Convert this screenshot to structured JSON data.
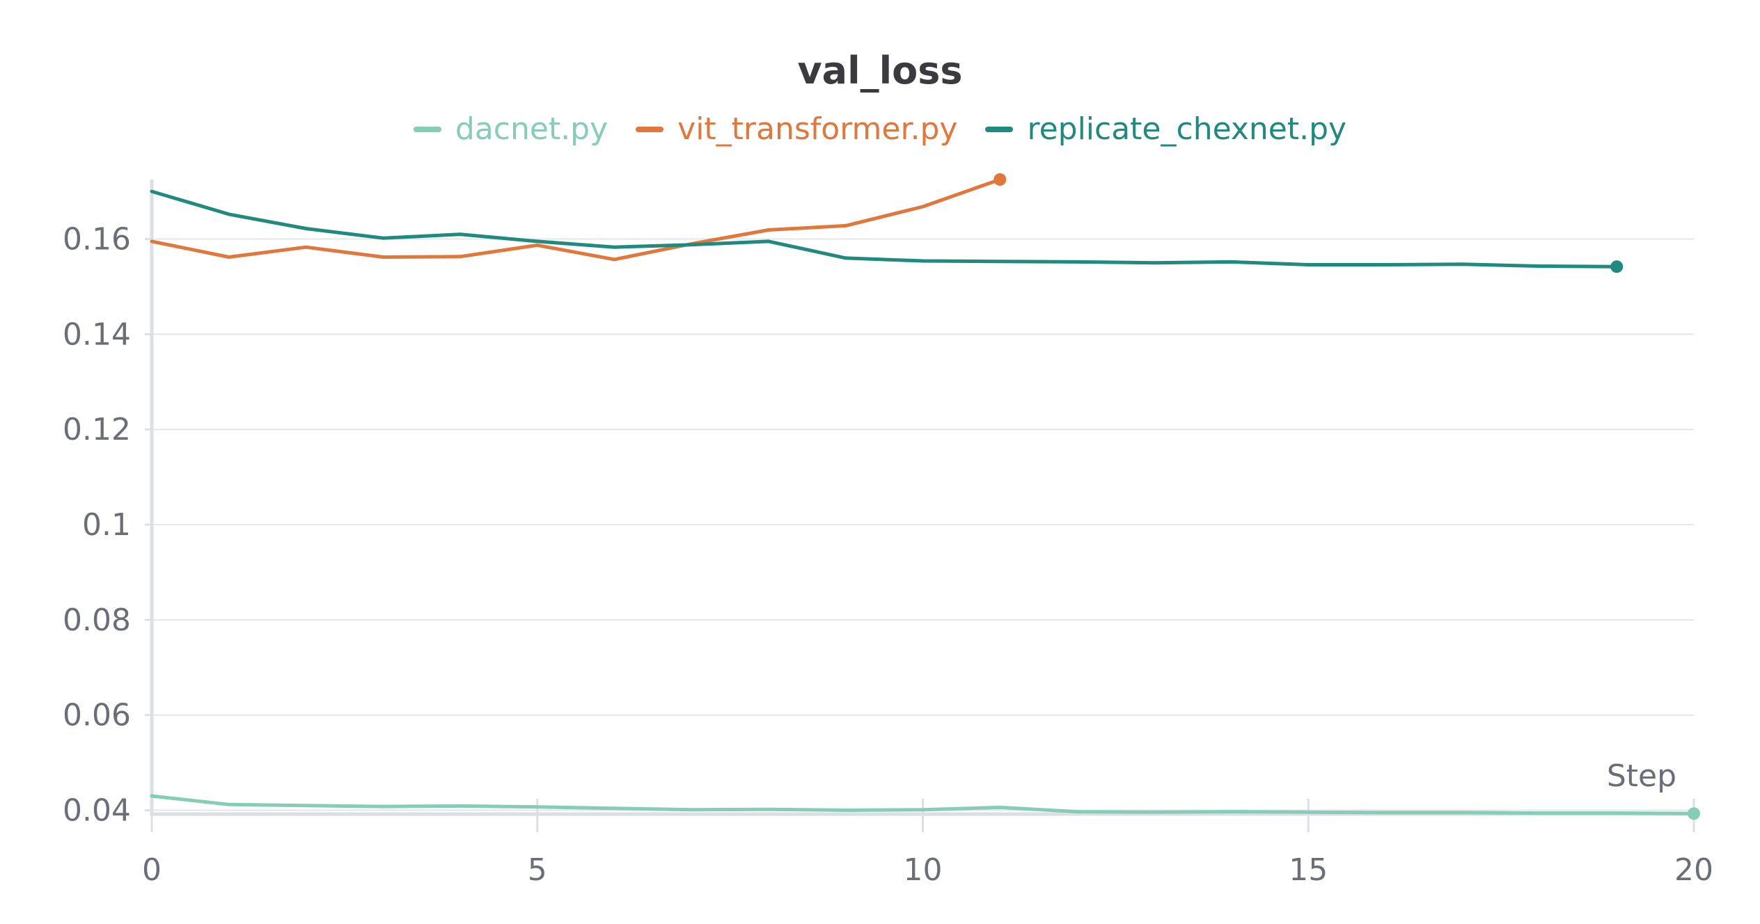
{
  "chart_data": {
    "type": "line",
    "title": "val_loss",
    "xlabel": "Step",
    "ylabel": "",
    "xlim": [
      0,
      20
    ],
    "ylim": [
      0.0392,
      0.1725
    ],
    "x_ticks": [
      "0",
      "5",
      "10",
      "15",
      "20"
    ],
    "y_ticks": [
      "0.04",
      "0.06",
      "0.08",
      "0.1",
      "0.12",
      "0.14",
      "0.16"
    ],
    "x_tick_values": [
      0,
      5,
      10,
      15,
      20
    ],
    "y_tick_values": [
      0.04,
      0.06,
      0.08,
      0.1,
      0.12,
      0.14,
      0.16
    ],
    "grid": true,
    "legend_position": "top-center",
    "series": [
      {
        "name": "dacnet.py",
        "color": "#86cdb7",
        "x": [
          0,
          1,
          2,
          3,
          4,
          5,
          6,
          7,
          8,
          9,
          10,
          11,
          12,
          13,
          14,
          15,
          16,
          17,
          18,
          19,
          20
        ],
        "values": [
          0.043,
          0.0412,
          0.041,
          0.0408,
          0.0409,
          0.0407,
          0.0404,
          0.0401,
          0.0402,
          0.04,
          0.0401,
          0.0406,
          0.0397,
          0.0396,
          0.0397,
          0.0396,
          0.0395,
          0.0395,
          0.0394,
          0.0394,
          0.0393
        ]
      },
      {
        "name": "vit_transformer.py",
        "color": "#e2773b",
        "x": [
          0,
          1,
          2,
          3,
          4,
          5,
          6,
          7,
          8,
          9,
          10,
          11
        ],
        "values": [
          0.1595,
          0.1562,
          0.1583,
          0.1562,
          0.1563,
          0.1587,
          0.1557,
          0.159,
          0.1619,
          0.1628,
          0.1668,
          0.1725
        ]
      },
      {
        "name": "replicate_chexnet.py",
        "color": "#1f8a7d",
        "x": [
          0,
          1,
          2,
          3,
          4,
          5,
          6,
          7,
          8,
          9,
          10,
          11,
          12,
          13,
          14,
          15,
          16,
          17,
          18,
          19
        ],
        "values": [
          0.17,
          0.1652,
          0.1622,
          0.1602,
          0.161,
          0.1595,
          0.1583,
          0.1588,
          0.1595,
          0.156,
          0.1554,
          0.1553,
          0.1552,
          0.155,
          0.1552,
          0.1546,
          0.1546,
          0.1547,
          0.1543,
          0.1542
        ]
      }
    ]
  }
}
